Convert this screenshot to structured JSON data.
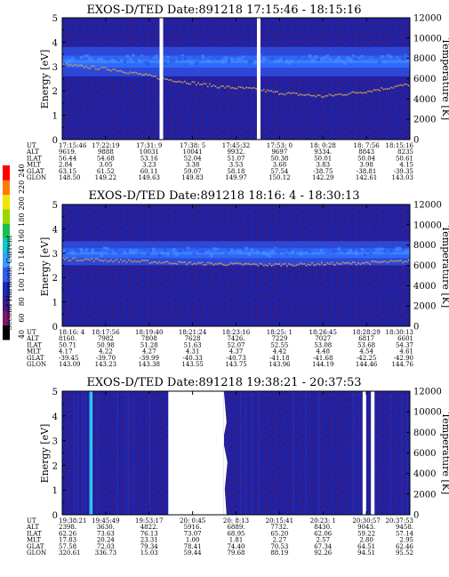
{
  "colors": {
    "background": "#1c22a8",
    "band_blue": "#2f4fe0",
    "band_bright": "#2d6cff",
    "band_lightblue": "#4a94ff",
    "trace": "#c9a15a",
    "noise_red": "#7a1030",
    "data_gap": "#ffffff"
  },
  "colorbar": {
    "label": "Second Harmonic Current",
    "ticks": [
      "40",
      "60",
      "80",
      "100",
      "120",
      "140",
      "160",
      "180",
      "200",
      "220",
      "240"
    ],
    "range": [
      40,
      240
    ],
    "colors": [
      "#000000",
      "#7a1a6a",
      "#3a1c8a",
      "#1a2ab8",
      "#2f5cf0",
      "#3a9cff",
      "#10c8c8",
      "#18c050",
      "#9ad800",
      "#f4e400",
      "#ff7a00",
      "#ff0000"
    ]
  },
  "table_labels": [
    "UT",
    "ALT",
    "ILAT",
    "MLT",
    "GLAT",
    "GLON"
  ],
  "chart_data": [
    {
      "type": "heatmap",
      "title": "EXOS-D/TED   Date:891218   17:15:46 - 18:15:16",
      "ylabel": "Energy [eV]",
      "y2label": "Temperature [K]",
      "ylim": [
        0,
        5
      ],
      "y2lim": [
        0,
        12000
      ],
      "yticks": [
        "0",
        "1",
        "2",
        "3",
        "4",
        "5"
      ],
      "y2ticks": [
        "0",
        "2000",
        "4000",
        "6000",
        "8000",
        "10000",
        "12000"
      ],
      "gaps": [
        0.28,
        0.56
      ],
      "band_center": 3.2,
      "band_width": 0.55,
      "trace": [
        [
          0.0,
          3.1
        ],
        [
          0.15,
          2.9
        ],
        [
          0.3,
          2.5
        ],
        [
          0.45,
          2.2
        ],
        [
          0.55,
          2.1
        ],
        [
          0.62,
          1.95
        ],
        [
          0.75,
          1.8
        ],
        [
          0.87,
          2.0
        ],
        [
          1.0,
          2.3
        ]
      ],
      "x_ticks": [
        {
          "UT": "17:15:46",
          "ALT": "9619.",
          "ILAT": "56.44",
          "MLT": "2.84",
          "GLAT": "63.15",
          "GLON": "148.50"
        },
        {
          "UT": "17:22:19",
          "ALT": "9888",
          "ILAT": "54.68",
          "MLT": "3.05",
          "GLAT": "61.52",
          "GLON": "149.22"
        },
        {
          "UT": "17:31: 9",
          "ALT": "10031",
          "ILAT": "53.16",
          "MLT": "3.23",
          "GLAT": "60.11",
          "GLON": "149.63"
        },
        {
          "UT": "17:38: 5",
          "ALT": "10041",
          "ILAT": "52.04",
          "MLT": "3.38",
          "GLAT": "59.07",
          "GLON": "149.83"
        },
        {
          "UT": "17:45:32",
          "ALT": "9932.",
          "ILAT": "51.07",
          "MLT": "3.53",
          "GLAT": "58.18",
          "GLON": "149.97"
        },
        {
          "UT": "17:53: 0",
          "ALT": "9697",
          "ILAT": "50.38",
          "MLT": "3.68",
          "GLAT": "57.54",
          "GLON": "150.12"
        },
        {
          "UT": "18: 0:28",
          "ALT": "9334.",
          "ILAT": "50.01",
          "MLT": "3.83",
          "GLAT": "-38.75",
          "GLON": "142.29"
        },
        {
          "UT": "18: 7:56",
          "ALT": "8843",
          "ILAT": "50.04",
          "MLT": "3.98",
          "GLAT": "-38.81",
          "GLON": "142.61"
        },
        {
          "UT": "18:15:16",
          "ALT": "8235",
          "ILAT": "50.61",
          "MLT": "4.15",
          "GLAT": "-39.35",
          "GLON": "143.03"
        }
      ]
    },
    {
      "type": "heatmap",
      "title": "EXOS-D/TED   Date:891218   18:16: 4 - 18:30:13",
      "ylabel": "Energy [eV]",
      "y2label": "Temperature [K]",
      "ylim": [
        0,
        5
      ],
      "y2lim": [
        0,
        12000
      ],
      "yticks": [
        "0",
        "1",
        "2",
        "3",
        "4",
        "5"
      ],
      "y2ticks": [
        "0",
        "2000",
        "4000",
        "6000",
        "8000",
        "10000",
        "12000"
      ],
      "gaps": [],
      "band_center": 3.0,
      "band_width": 0.45,
      "trace": [
        [
          0.0,
          2.8
        ],
        [
          0.2,
          2.7
        ],
        [
          0.4,
          2.6
        ],
        [
          0.6,
          2.55
        ],
        [
          0.8,
          2.6
        ],
        [
          1.0,
          2.7
        ]
      ],
      "x_ticks": [
        {
          "UT": "18:16: 4",
          "ALT": "8160.",
          "ILAT": "50.71",
          "MLT": "4.17",
          "GLAT": "-39.45",
          "GLON": "143.09"
        },
        {
          "UT": "18:17:56",
          "ALT": "7982",
          "ILAT": "50.98",
          "MLT": "4.22",
          "GLAT": "-39.70",
          "GLON": "143.23"
        },
        {
          "UT": "18:19:40",
          "ALT": "7808",
          "ILAT": "51.28",
          "MLT": "4.27",
          "GLAT": "-39.99",
          "GLON": "143.38"
        },
        {
          "UT": "18:21:24",
          "ALT": "7628",
          "ILAT": "51.63",
          "MLT": "4.31",
          "GLAT": "-40.33",
          "GLON": "143.55"
        },
        {
          "UT": "18:23:16",
          "ALT": "7426.",
          "ILAT": "52.07",
          "MLT": "4.37",
          "GLAT": "-40.73",
          "GLON": "143.75"
        },
        {
          "UT": "18:25: 1",
          "ALT": "7229",
          "ILAT": "52.55",
          "MLT": "4.42",
          "GLAT": "-41.18",
          "GLON": "143.96"
        },
        {
          "UT": "18:26:45",
          "ALT": "7027",
          "ILAT": "53.08",
          "MLT": "4.48",
          "GLAT": "-41.68",
          "GLON": "144.19"
        },
        {
          "UT": "18:28:29",
          "ALT": "6817",
          "ILAT": "53.68",
          "MLT": "4.54",
          "GLAT": "-42.25",
          "GLON": "144.46"
        },
        {
          "UT": "18:30:13",
          "ALT": "6601",
          "ILAT": "54.37",
          "MLT": "4.61",
          "GLAT": "-42.90",
          "GLON": "144.76"
        }
      ]
    },
    {
      "type": "heatmap",
      "title": "EXOS-D/TED   Date:891218   19:38:21 - 20:37:53",
      "ylabel": "Energy [eV]",
      "y2label": "Temperature [K]",
      "ylim": [
        0,
        5
      ],
      "y2lim": [
        0,
        12000
      ],
      "yticks": [
        "0",
        "1",
        "2",
        "3",
        "4",
        "5"
      ],
      "y2ticks": [
        "0",
        "2000",
        "4000",
        "6000",
        "8000",
        "10000",
        "12000"
      ],
      "gaps": [
        0.305,
        0.315,
        0.323,
        0.331,
        0.339,
        0.347,
        0.355,
        0.363,
        0.371,
        0.379,
        0.387,
        0.395,
        0.403,
        0.411,
        0.419,
        0.427,
        0.435,
        0.443,
        0.451,
        0.459,
        0.465,
        0.864,
        0.888
      ],
      "band_center": null,
      "band_width": 0,
      "trace": [],
      "x_ticks": [
        {
          "UT": "19:38:21",
          "ALT": "2398.",
          "ILAT": "62.26",
          "MLT": "17.83",
          "GLAT": "57.58",
          "GLON": "320.61"
        },
        {
          "UT": "19:45:49",
          "ALT": "3630.",
          "ILAT": "73.63",
          "MLT": "20.24",
          "GLAT": "72.03",
          "GLON": "336.73"
        },
        {
          "UT": "19:53:17",
          "ALT": "4822.",
          "ILAT": "76.13",
          "MLT": "23.31",
          "GLAT": "79.34",
          "GLON": "15.03"
        },
        {
          "UT": "20: 0:45",
          "ALT": "5916.",
          "ILAT": "73.07",
          "MLT": "1.00",
          "GLAT": "78.41",
          "GLON": "59.44"
        },
        {
          "UT": "20: 8:13",
          "ALT": "6889.",
          "ILAT": "68.95",
          "MLT": "1.81",
          "GLAT": "74.40",
          "GLON": "79.68"
        },
        {
          "UT": "20:15:41",
          "ALT": "7732.",
          "ILAT": "65.20",
          "MLT": "2.27",
          "GLAT": "70.53",
          "GLON": "88.19"
        },
        {
          "UT": "20:23: 1",
          "ALT": "8430.",
          "ILAT": "62.06",
          "MLT": "2.57",
          "GLAT": "67.34",
          "GLON": "92.26"
        },
        {
          "UT": "20:30:57",
          "ALT": "9043.",
          "ILAT": "59.22",
          "MLT": "2.80",
          "GLAT": "64.51",
          "GLON": "94.51"
        },
        {
          "UT": "20:37:53",
          "ALT": "9458.",
          "ILAT": "57.14",
          "MLT": "2.95",
          "GLAT": "62.46",
          "GLON": "95.52"
        }
      ]
    }
  ]
}
